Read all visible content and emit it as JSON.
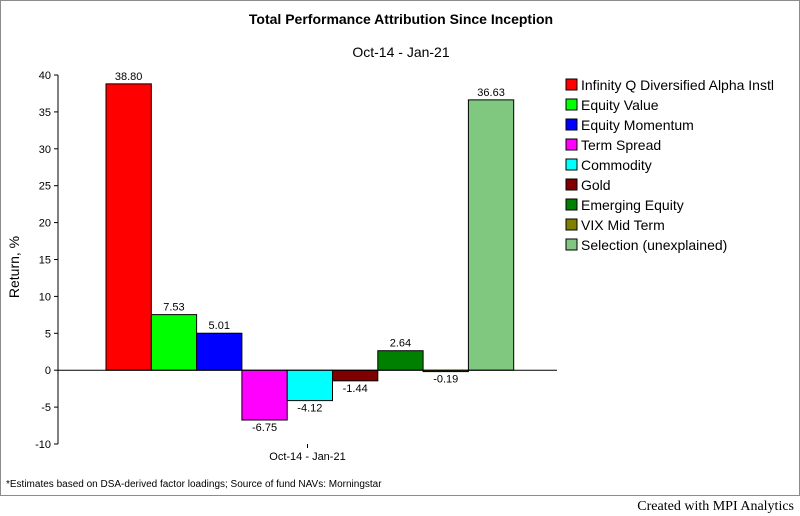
{
  "chart_data": {
    "type": "bar",
    "title": "Total Performance Attribution Since Inception",
    "subtitle": "Oct-14 - Jan-21",
    "ylabel": "Return, %",
    "xlabel": "",
    "categories": [
      "Oct-14 - Jan-21"
    ],
    "ylim": [
      -10,
      40
    ],
    "yticks": [
      -10,
      -5,
      0,
      5,
      10,
      15,
      20,
      25,
      30,
      35,
      40
    ],
    "grid": false,
    "legend_position": "right",
    "series": [
      {
        "name": "Infinity Q Diversified Alpha Instl",
        "value": 38.8,
        "label": "38.80",
        "color": "#ff0000"
      },
      {
        "name": "Equity Value",
        "value": 7.53,
        "label": "7.53",
        "color": "#00ff00"
      },
      {
        "name": "Equity Momentum",
        "value": 5.01,
        "label": "5.01",
        "color": "#0000ff"
      },
      {
        "name": "Term Spread",
        "value": -6.75,
        "label": "-6.75",
        "color": "#ff00ff"
      },
      {
        "name": "Commodity",
        "value": -4.12,
        "label": "-4.12",
        "color": "#00ffff"
      },
      {
        "name": "Gold",
        "value": -1.44,
        "label": "-1.44",
        "color": "#800000"
      },
      {
        "name": "Emerging Equity",
        "value": 2.64,
        "label": "2.64",
        "color": "#008000"
      },
      {
        "name": "VIX Mid Term",
        "value": -0.19,
        "label": "-0.19",
        "color": "#808000"
      },
      {
        "name": "Selection (unexplained)",
        "value": 36.63,
        "label": "36.63",
        "color": "#80c880"
      }
    ]
  },
  "footnote": "*Estimates based on DSA-derived factor loadings; Source of fund NAVs: Morningstar",
  "credit": "Created with MPI Analytics"
}
